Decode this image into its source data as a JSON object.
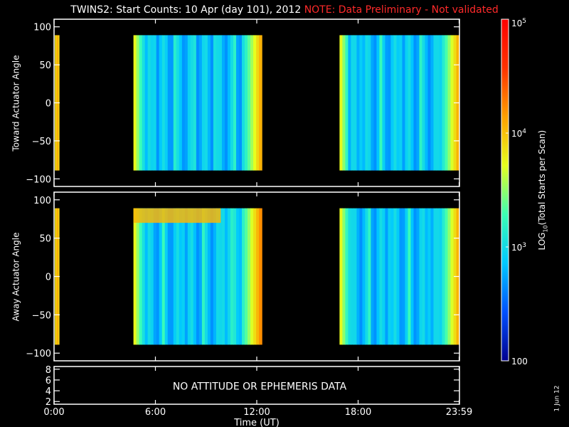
{
  "title": {
    "main": "TWINS2: Start Counts: 10 Apr (day 101), 2012",
    "note": "NOTE: Data Preliminary - Not validated"
  },
  "chart_data": [
    {
      "type": "heatmap",
      "panel": "toward",
      "ylabel": "Toward Actuator Angle",
      "ylim": [
        -110,
        110
      ],
      "yticks": [
        -100,
        -50,
        0,
        50,
        100
      ],
      "xlim": [
        0,
        24
      ],
      "data_blocks": [
        {
          "start_hr": 0.05,
          "end_hr": 0.3,
          "level": "high"
        },
        {
          "start_hr": 4.7,
          "end_hr": 12.3,
          "angle_range": [
            -89,
            89
          ],
          "edge_level": "high",
          "center_level": "low"
        },
        {
          "start_hr": 16.9,
          "end_hr": 23.98,
          "angle_range": [
            -89,
            89
          ],
          "edge_level": "high",
          "center_level": "low"
        }
      ]
    },
    {
      "type": "heatmap",
      "panel": "away",
      "ylabel": "Away Actuator Angle",
      "ylim": [
        -110,
        110
      ],
      "yticks": [
        -100,
        -50,
        0,
        50,
        100
      ],
      "xlim": [
        0,
        24
      ],
      "data_blocks": [
        {
          "start_hr": 0.05,
          "end_hr": 0.3,
          "level": "high"
        },
        {
          "start_hr": 4.7,
          "end_hr": 12.3,
          "angle_range": [
            -89,
            89
          ],
          "edge_level": "high",
          "center_level": "low"
        },
        {
          "start_hr": 16.9,
          "end_hr": 23.98,
          "angle_range": [
            -89,
            89
          ],
          "edge_level": "high",
          "center_level": "low"
        }
      ]
    },
    {
      "type": "line",
      "panel": "ephemeris",
      "ylim": [
        1.5,
        8.5
      ],
      "yticks": [
        2,
        4,
        6,
        8
      ],
      "annotation": "NO ATTITUDE OR EPHEMERIS DATA"
    }
  ],
  "x_axis": {
    "label": "Time (UT)",
    "ticks": [
      {
        "hr": 0,
        "label": "0:00"
      },
      {
        "hr": 6,
        "label": "6:00"
      },
      {
        "hr": 12,
        "label": "12:00"
      },
      {
        "hr": 18,
        "label": "18:00"
      },
      {
        "hr": 23.98,
        "label": "23:59"
      }
    ]
  },
  "colorbar": {
    "label": "LOG10(Total Starts per Scan)",
    "min": 100,
    "max": 100000,
    "scale": "log",
    "ticks": [
      {
        "value": 100,
        "label": "100"
      },
      {
        "value": 1000,
        "label": "10^3"
      },
      {
        "value": 10000,
        "label": "10^4"
      },
      {
        "value": 100000,
        "label": "10^5"
      }
    ],
    "colors": [
      "#00008f",
      "#0050ff",
      "#00c8ff",
      "#3cffb4",
      "#e6ff1e",
      "#ffa000",
      "#ff3200",
      "#ff0000"
    ]
  },
  "footer": {
    "date": "1 Jun 12"
  }
}
